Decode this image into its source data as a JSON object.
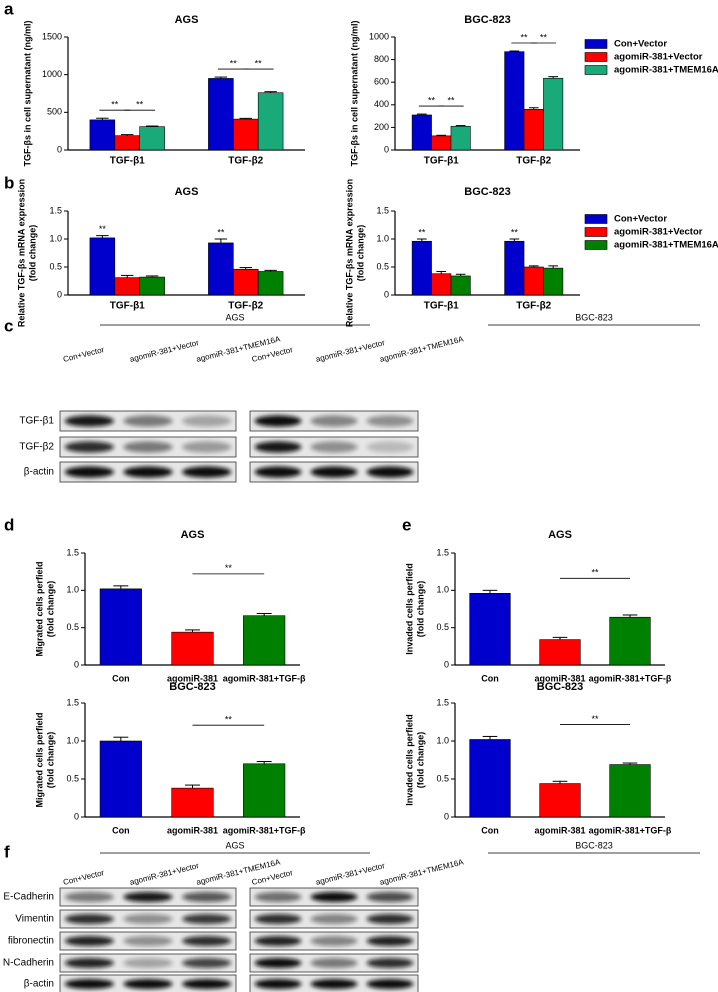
{
  "panel_labels": [
    "a",
    "b",
    "c",
    "d",
    "e",
    "f"
  ],
  "chart_data": [
    {
      "type": "bar",
      "title": "AGS",
      "ylabel": [
        "TGF-βs in cell supernatant (ng/ml)"
      ],
      "categories": [
        "TGF-β1",
        "TGF-β2"
      ],
      "series": [
        {
          "color": "#0000cc",
          "values": [
            400,
            950
          ],
          "errors": [
            22,
            18
          ]
        },
        {
          "color": "#ff0000",
          "values": [
            190,
            410
          ],
          "errors": [
            14,
            10
          ]
        },
        {
          "color": "#1aaa7a",
          "values": [
            310,
            760
          ],
          "errors": [
            8,
            14
          ]
        }
      ],
      "ylim": [
        0,
        1500
      ],
      "yticks": [
        0,
        500,
        1000,
        1500
      ],
      "annotations": [
        {
          "text": "**",
          "category": 0,
          "bars": [
            0,
            1
          ]
        },
        {
          "text": "**",
          "category": 0,
          "bars": [
            1,
            2
          ]
        },
        {
          "text": "**",
          "category": 1,
          "bars": [
            0,
            1
          ]
        },
        {
          "text": "**",
          "category": 1,
          "bars": [
            1,
            2
          ]
        }
      ]
    },
    {
      "type": "bar",
      "title": "BGC-823",
      "ylabel": [
        "TGF-βs in cell supernatant (ng/ml)"
      ],
      "categories": [
        "TGF-β1",
        "TGF-β2"
      ],
      "series": [
        {
          "name": "Con+Vector",
          "color": "#0000cc",
          "values": [
            310,
            870
          ],
          "errors": [
            8,
            6
          ]
        },
        {
          "name": "agomiR-381+Vector",
          "color": "#ff0000",
          "values": [
            125,
            360
          ],
          "errors": [
            5,
            14
          ]
        },
        {
          "name": "agomiR-381+TMEM16A",
          "color": "#1aaa7a",
          "values": [
            210,
            635
          ],
          "errors": [
            6,
            14
          ]
        }
      ],
      "ylim": [
        0,
        1000
      ],
      "yticks": [
        0,
        200,
        400,
        600,
        800,
        1000
      ],
      "legend": "right",
      "annotations": [
        {
          "text": "**",
          "category": 0,
          "bars": [
            0,
            1
          ]
        },
        {
          "text": "**",
          "category": 0,
          "bars": [
            1,
            2
          ]
        },
        {
          "text": "**",
          "category": 1,
          "bars": [
            0,
            1
          ]
        },
        {
          "text": "**",
          "category": 1,
          "bars": [
            1,
            2
          ]
        }
      ]
    },
    {
      "type": "bar",
      "title": "AGS",
      "ylabel": [
        "Relative TGF-βs mRNA expression",
        "(fold change)"
      ],
      "categories": [
        "TGF-β1",
        "TGF-β2"
      ],
      "series": [
        {
          "color": "#0000cc",
          "values": [
            1.02,
            0.93
          ],
          "errors": [
            0.04,
            0.07
          ]
        },
        {
          "color": "#ff0000",
          "values": [
            0.31,
            0.46
          ],
          "errors": [
            0.04,
            0.03
          ]
        },
        {
          "color": "#008000",
          "values": [
            0.32,
            0.42
          ],
          "errors": [
            0.02,
            0.02
          ]
        }
      ],
      "ylim": [
        0,
        1.5
      ],
      "yticks": [
        0,
        0.5,
        {
          "value": 1,
          "label": "1.0"
        },
        1.5
      ],
      "annotations": [
        {
          "text": "**",
          "category": 0,
          "bars": [
            0
          ]
        },
        {
          "text": "**",
          "category": 1,
          "bars": [
            0
          ]
        }
      ]
    },
    {
      "type": "bar",
      "title": "BGC-823",
      "ylabel": [
        "Relative TGF-βs mRNA expression",
        "(fold change)"
      ],
      "categories": [
        "TGF-β1",
        "TGF-β2"
      ],
      "series": [
        {
          "name": "Con+Vector",
          "color": "#0000cc",
          "values": [
            0.96,
            0.96
          ],
          "errors": [
            0.04,
            0.04
          ]
        },
        {
          "name": "agomiR-381+Vector",
          "color": "#ff0000",
          "values": [
            0.38,
            0.5
          ],
          "errors": [
            0.04,
            0.02
          ]
        },
        {
          "name": "agomiR-381+TMEM16A",
          "color": "#008000",
          "values": [
            0.34,
            0.48
          ],
          "errors": [
            0.03,
            0.04
          ]
        }
      ],
      "ylim": [
        0,
        1.5
      ],
      "yticks": [
        0,
        0.5,
        {
          "value": 1,
          "label": "1.0"
        },
        1.5
      ],
      "legend": "right",
      "annotations": [
        {
          "text": "**",
          "category": 0,
          "bars": [
            0
          ]
        },
        {
          "text": "**",
          "category": 1,
          "bars": [
            0
          ]
        }
      ]
    },
    {
      "type": "bar",
      "title": "AGS",
      "ylabel": [
        "Migrated cells perfield",
        "(fold change)"
      ],
      "categories": [
        "Con",
        "agomiR-381",
        "agomiR-381+TGF-β"
      ],
      "values": [
        1.02,
        0.44,
        0.66
      ],
      "errors": [
        0.04,
        0.03,
        0.03
      ],
      "colors": [
        "#0000cc",
        "#ff0000",
        "#008000"
      ],
      "ylim": [
        0,
        1.5
      ],
      "yticks": [
        0,
        0.5,
        {
          "value": 1,
          "label": "1.0"
        },
        1.5
      ],
      "annotations": [
        {
          "text": "**",
          "bars": [
            1,
            2
          ]
        }
      ]
    },
    {
      "type": "bar",
      "title": "BGC-823",
      "ylabel": [
        "Migrated cells perfield",
        "(fold change)"
      ],
      "categories": [
        "Con",
        "agomiR-381",
        "agomiR-381+TGF-β"
      ],
      "values": [
        1.0,
        0.38,
        0.7
      ],
      "errors": [
        0.05,
        0.04,
        0.03
      ],
      "colors": [
        "#0000cc",
        "#ff0000",
        "#008000"
      ],
      "ylim": [
        0,
        1.5
      ],
      "yticks": [
        0,
        0.5,
        {
          "value": 1,
          "label": "1.0"
        },
        1.5
      ],
      "annotations": [
        {
          "text": "**",
          "bars": [
            1,
            2
          ]
        }
      ]
    },
    {
      "type": "bar",
      "title": "AGS",
      "ylabel": [
        "Invaded cells perfield",
        "(fold change)"
      ],
      "categories": [
        "Con",
        "agomiR-381",
        "agomiR-381+TGF-β"
      ],
      "values": [
        0.96,
        0.34,
        0.64
      ],
      "errors": [
        0.04,
        0.03,
        0.03
      ],
      "colors": [
        "#0000cc",
        "#ff0000",
        "#008000"
      ],
      "ylim": [
        0,
        1.5
      ],
      "yticks": [
        0,
        0.5,
        {
          "value": 1,
          "label": "1.0"
        },
        1.5
      ],
      "annotations": [
        {
          "text": "**",
          "bars": [
            1,
            2
          ]
        }
      ]
    },
    {
      "type": "bar",
      "title": "BGC-823",
      "ylabel": [
        "Invaded cells perfield",
        "(fold change)"
      ],
      "categories": [
        "Con",
        "agomiR-381",
        "agomiR-381+TGF-β"
      ],
      "values": [
        1.02,
        0.44,
        0.69
      ],
      "errors": [
        0.04,
        0.03,
        0.02
      ],
      "colors": [
        "#0000cc",
        "#ff0000",
        "#008000"
      ],
      "ylim": [
        0,
        1.5
      ],
      "yticks": [
        0,
        0.5,
        {
          "value": 1,
          "label": "1.0"
        },
        1.5
      ],
      "annotations": [
        {
          "text": "**",
          "bars": [
            1,
            2
          ]
        }
      ]
    }
  ],
  "blots": [
    {
      "groups": [
        "AGS",
        "BGC-823"
      ],
      "lanes": [
        "Con+Vector",
        "agomiR-381+Vector",
        "agomiR-381+TMEM16A",
        "Con+Vector",
        "agomiR-381+Vector",
        "agomiR-381+TMEM16A"
      ],
      "rows": [
        "TGF-β1",
        "TGF-β2",
        "β-actin"
      ]
    },
    {
      "groups": [
        "AGS",
        "BGC-823"
      ],
      "lanes": [
        "Con+Vector",
        "agomiR-381+Vector",
        "agomiR-381+TMEM16A",
        "Con+Vector",
        "agomiR-381+Vector",
        "agomiR-381+TMEM16A"
      ],
      "rows": [
        "E-Cadherin",
        "Vimentin",
        "fibronectin",
        "N-Cadherin",
        "β-actin"
      ]
    }
  ]
}
